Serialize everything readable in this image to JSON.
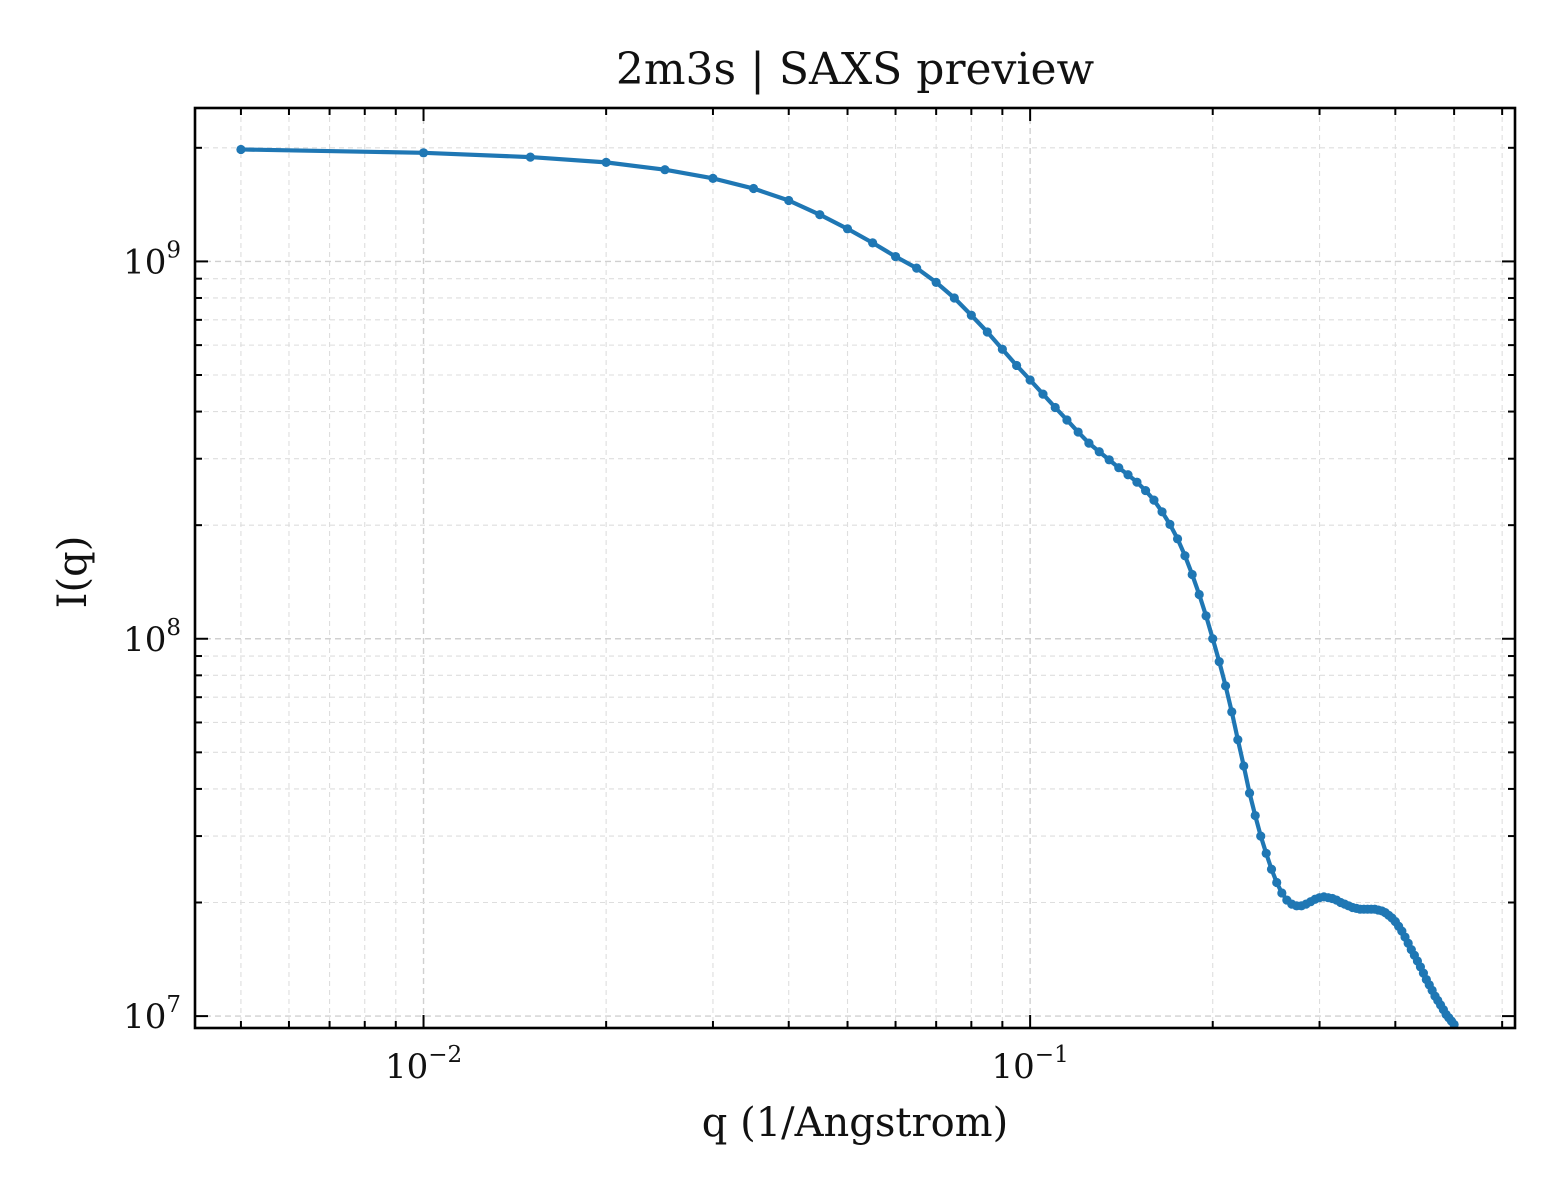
{
  "chart_data": {
    "type": "line",
    "title": "2m3s | SAXS preview",
    "xlabel": "q (1/Angstrom)",
    "ylabel": "I(q)",
    "xscale": "log",
    "yscale": "log",
    "xlim": [
      0.0042,
      0.63
    ],
    "ylim": [
      9300000.0,
      2550000000.0
    ],
    "grid": true,
    "color": "#1f77b4",
    "x_major_ticks": [
      {
        "value": 0.01,
        "base": "10",
        "exp": "−2"
      },
      {
        "value": 0.1,
        "base": "10",
        "exp": "−1"
      }
    ],
    "y_major_ticks": [
      {
        "value": 10000000,
        "base": "10",
        "exp": "7"
      },
      {
        "value": 100000000,
        "base": "10",
        "exp": "8"
      },
      {
        "value": 1000000000,
        "base": "10",
        "exp": "9"
      }
    ],
    "series": [
      {
        "x": [
          0.005,
          0.01,
          0.015,
          0.02,
          0.025,
          0.03,
          0.035,
          0.04,
          0.045,
          0.05,
          0.055,
          0.06,
          0.065,
          0.07,
          0.075,
          0.08,
          0.085,
          0.09,
          0.095,
          0.1,
          0.105,
          0.11,
          0.115,
          0.12,
          0.125,
          0.13,
          0.135,
          0.14,
          0.145,
          0.15,
          0.155,
          0.16,
          0.165,
          0.17,
          0.175,
          0.18,
          0.185,
          0.19,
          0.195,
          0.2,
          0.205,
          0.21,
          0.215,
          0.22,
          0.225,
          0.23,
          0.235,
          0.24,
          0.245,
          0.25,
          0.255,
          0.26,
          0.265,
          0.27,
          0.275,
          0.28,
          0.285,
          0.29,
          0.295,
          0.3,
          0.305,
          0.31,
          0.315,
          0.32,
          0.325,
          0.33,
          0.335,
          0.34,
          0.345,
          0.35,
          0.355,
          0.36,
          0.365,
          0.37,
          0.375,
          0.38,
          0.385,
          0.39,
          0.395,
          0.4,
          0.405,
          0.41,
          0.415,
          0.42,
          0.425,
          0.43,
          0.435,
          0.44,
          0.445,
          0.45,
          0.455,
          0.46,
          0.465,
          0.47,
          0.475,
          0.48,
          0.485,
          0.49,
          0.495,
          0.5
        ],
        "y": [
          1980000000.0,
          1940000000.0,
          1890000000.0,
          1830000000.0,
          1750000000.0,
          1660000000.0,
          1560000000.0,
          1450000000.0,
          1330000000.0,
          1220000000.0,
          1120000000.0,
          1030000000.0,
          960000000.0,
          880000000.0,
          800000000.0,
          720000000.0,
          650000000.0,
          585000000.0,
          530000000.0,
          485000000.0,
          445000000.0,
          410000000.0,
          380000000.0,
          353000000.0,
          330000000.0,
          313000000.0,
          298000000.0,
          284000000.0,
          272000000.0,
          260000000.0,
          247000000.0,
          233000000.0,
          217000000.0,
          201000000.0,
          184000000.0,
          166000000.0,
          148000000.0,
          131000000.0,
          115000000.0,
          100000000.0,
          87000000.0,
          75000000.0,
          64000000.0,
          54000000.0,
          46000000.0,
          39000000.0,
          34000000.0,
          30000000.0,
          27000000.0,
          24500000.0,
          22600000.0,
          21200000.0,
          20300000.0,
          19800000.0,
          19600000.0,
          19600000.0,
          19800000.0,
          20100000.0,
          20400000.0,
          20600000.0,
          20700000.0,
          20600000.0,
          20500000.0,
          20300000.0,
          20000000.0,
          19800000.0,
          19600000.0,
          19400000.0,
          19300000.0,
          19200000.0,
          19200000.0,
          19200000.0,
          19200000.0,
          19200000.0,
          19100000.0,
          19000000.0,
          18800000.0,
          18500000.0,
          18200000.0,
          17800000.0,
          17300000.0,
          16800000.0,
          16200000.0,
          15600000.0,
          15000000.0,
          14500000.0,
          14000000.0,
          13500000.0,
          13000000.0,
          12500000.0,
          12100000.0,
          11700000.0,
          11300000.0,
          11000000.0,
          10700000.0,
          10400000.0,
          10100000.0,
          9900000.0,
          9700000.0,
          9500000.0
        ]
      }
    ]
  }
}
